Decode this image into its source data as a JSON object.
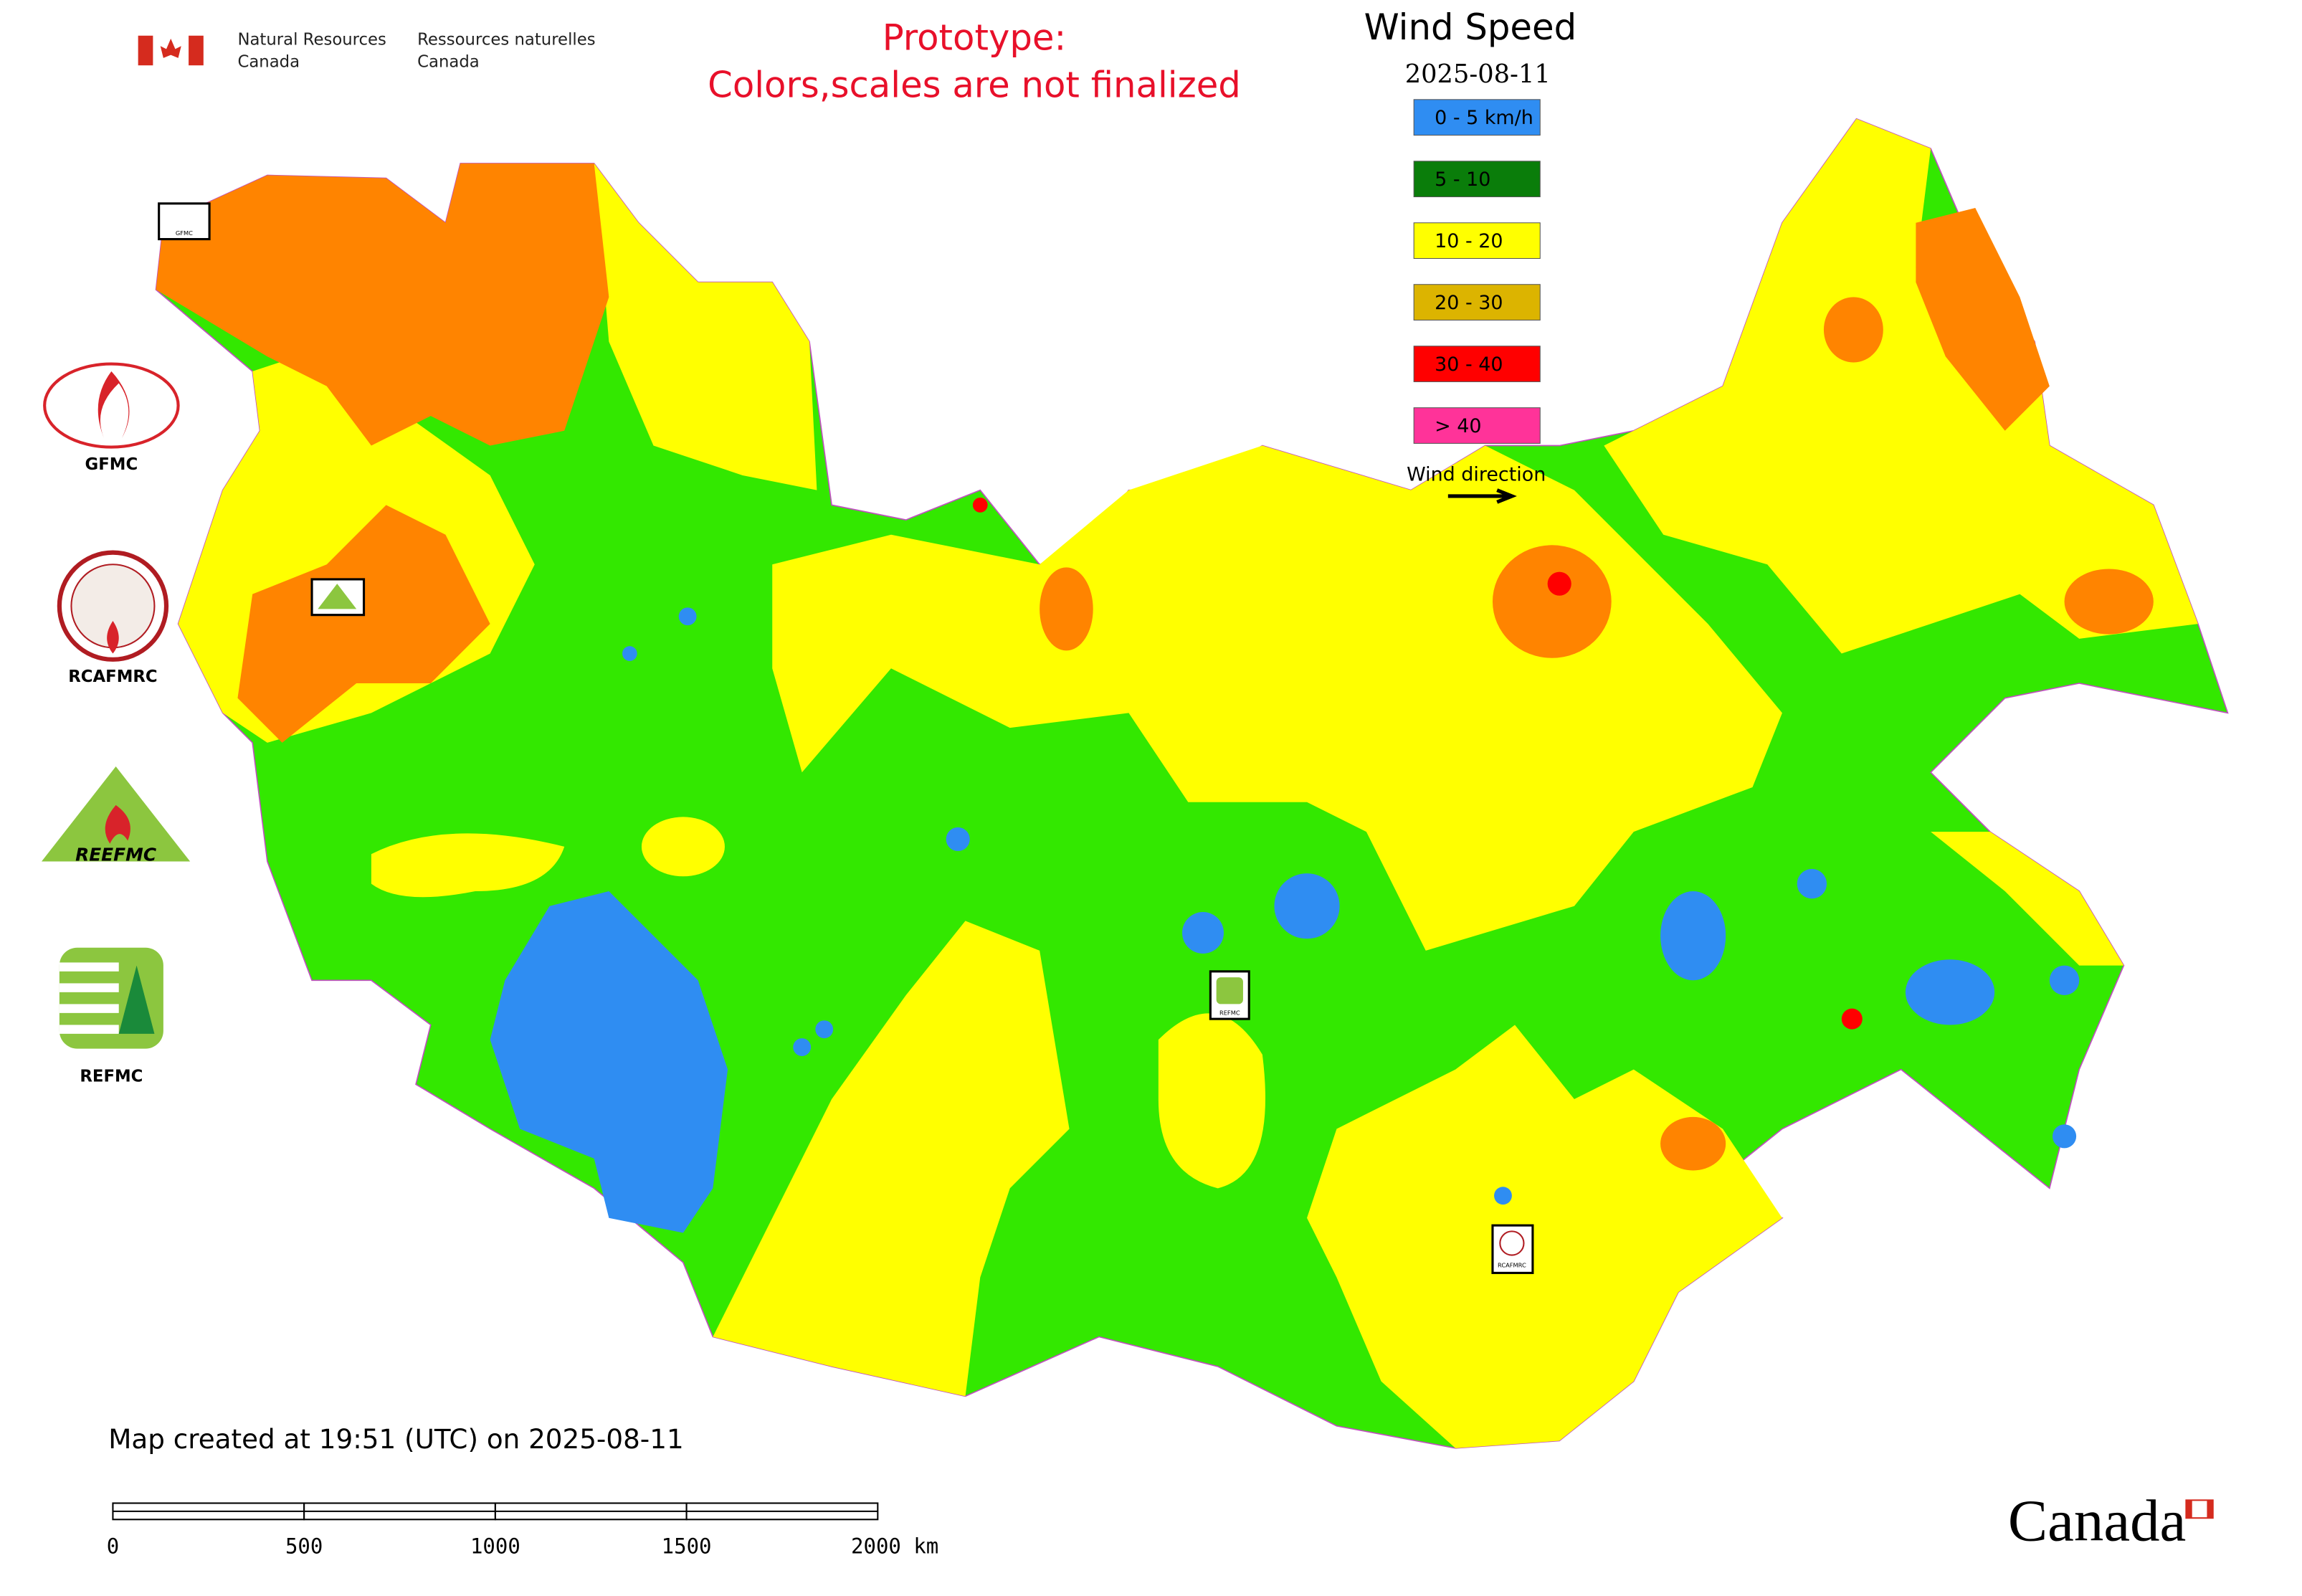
{
  "header": {
    "agency_en": [
      "Natural Resources",
      "Canada"
    ],
    "agency_fr": [
      "Ressources naturelles",
      "Canada"
    ],
    "notice": [
      "Prototype:",
      "Colors,scales are not finalized"
    ]
  },
  "legend": {
    "title": "Wind Speed",
    "date": "2025-08-11",
    "items": [
      {
        "label": "0 - 5 km/h",
        "color": "#2f8df2"
      },
      {
        "label": "5 - 10",
        "color": "#0a7d0a"
      },
      {
        "label": "10 - 20",
        "color": "#ffff00"
      },
      {
        "label": "20 - 30",
        "color": "#dcb400"
      },
      {
        "label": "30 - 40",
        "color": "#ff0000"
      },
      {
        "label": "> 40",
        "color": "#ff3399"
      }
    ],
    "wind_direction": "Wind direction"
  },
  "logos": [
    "GFMC",
    "RCAFMRC",
    "REEFMC",
    "REFMC"
  ],
  "footer": {
    "created": "Map created at 19:51 (UTC) on 2025-08-11",
    "scale_labels": [
      "0",
      "500",
      "1000",
      "1500",
      "2000 km"
    ],
    "wordmark": "Canada"
  }
}
